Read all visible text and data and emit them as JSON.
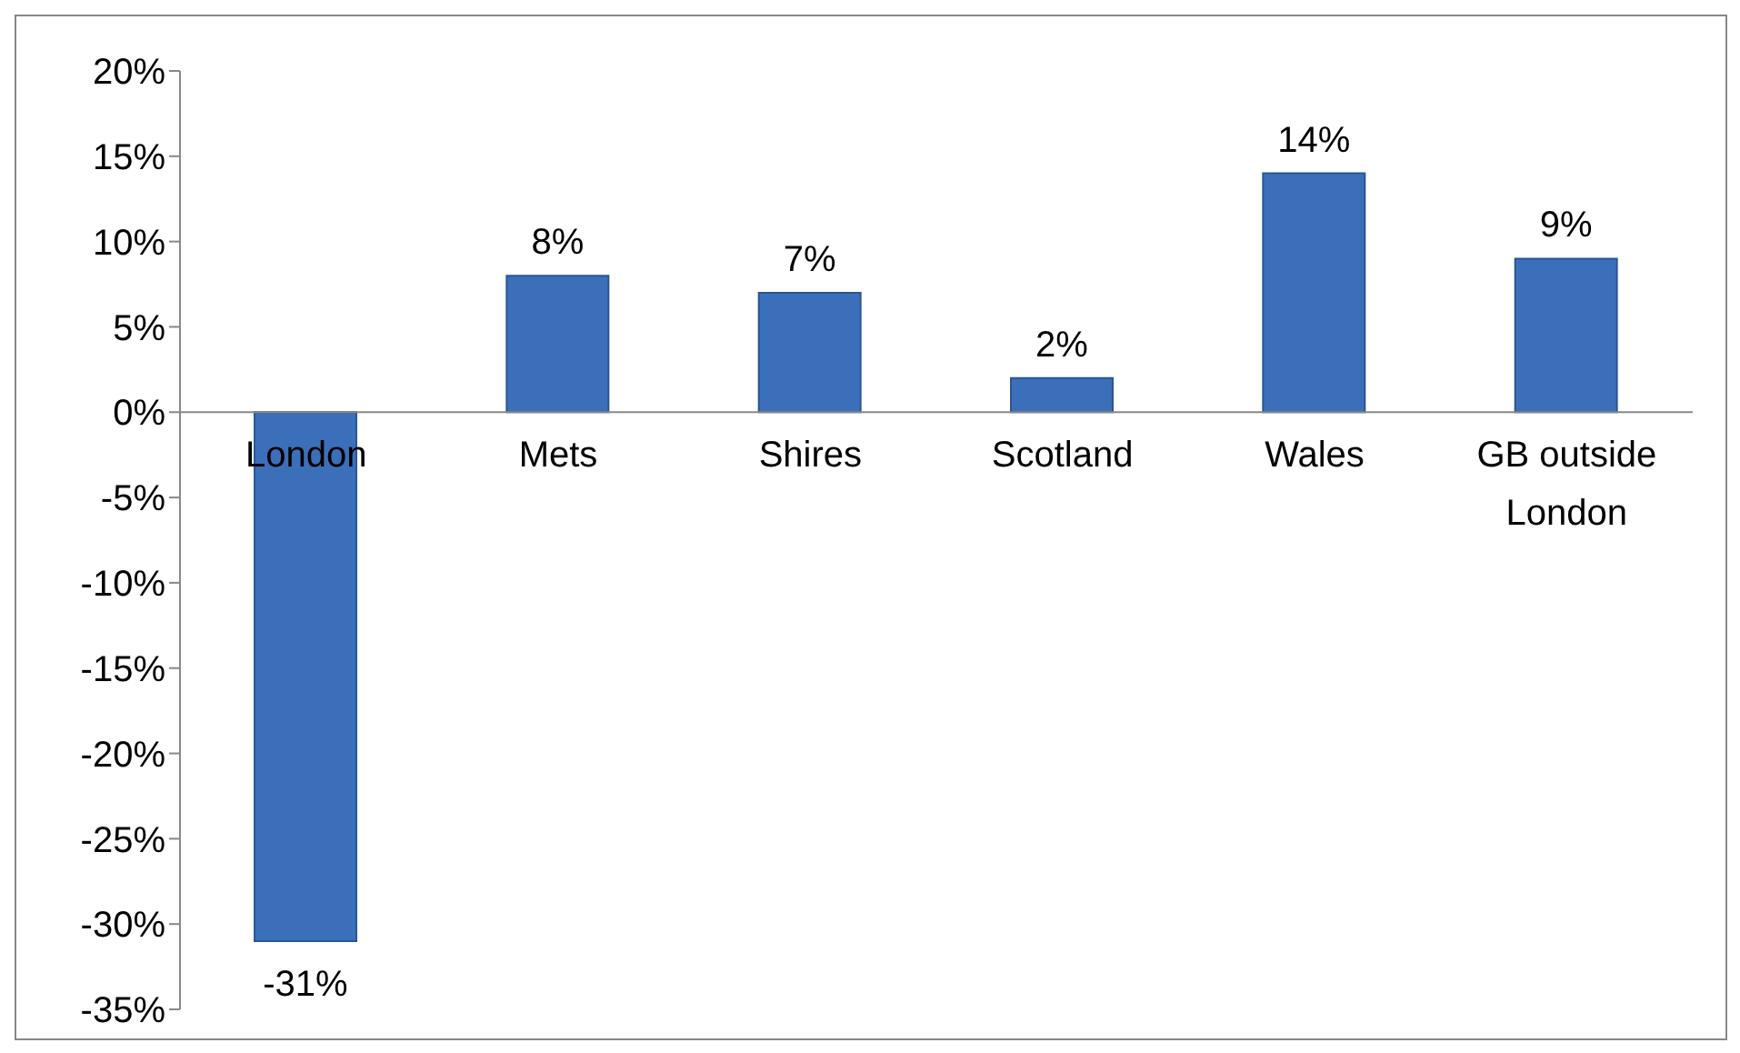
{
  "chart_data": {
    "type": "bar",
    "categories": [
      "London",
      "Mets",
      "Shires",
      "Scotland",
      "Wales",
      "GB outside London"
    ],
    "values": [
      -31,
      8,
      7,
      2,
      14,
      9
    ],
    "value_labels": [
      "-31%",
      "8%",
      "7%",
      "2%",
      "14%",
      "9%"
    ],
    "color": "#3b6fba",
    "ylim": [
      -35,
      20
    ],
    "yticks": [
      {
        "value": -35,
        "label": "-35%"
      },
      {
        "value": -30,
        "label": "-30%"
      },
      {
        "value": -25,
        "label": "-25%"
      },
      {
        "value": -20,
        "label": "-20%"
      },
      {
        "value": -15,
        "label": "-15%"
      },
      {
        "value": -10,
        "label": "-10%"
      },
      {
        "value": -5,
        "label": "-5%"
      },
      {
        "value": 0,
        "label": "0%"
      },
      {
        "value": 5,
        "label": "5%"
      },
      {
        "value": 10,
        "label": "10%"
      },
      {
        "value": 15,
        "label": "15%"
      },
      {
        "value": 20,
        "label": "20%"
      }
    ],
    "grid": false,
    "legend": false
  }
}
